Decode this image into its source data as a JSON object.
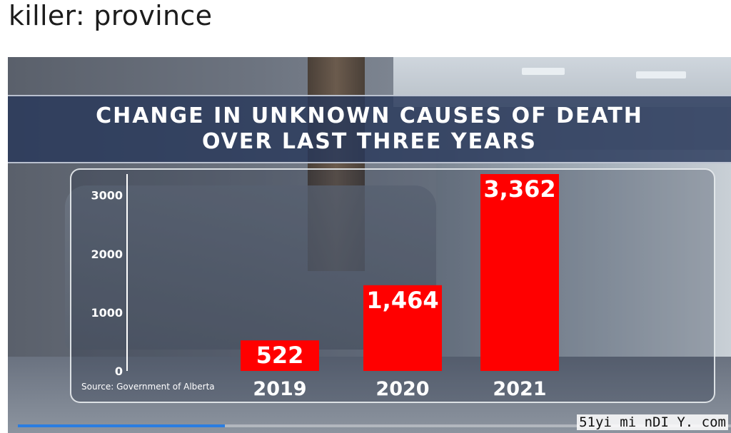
{
  "page": {
    "headline": "killer: province"
  },
  "video": {
    "progress": 0.29
  },
  "watermark": "51yi mi nDI Y. com",
  "chart_data": {
    "type": "bar",
    "title_lines": [
      "CHANGE IN UNKNOWN CAUSES OF DEATH",
      "OVER LAST THREE YEARS"
    ],
    "categories": [
      "2019",
      "2020",
      "2021"
    ],
    "values": [
      522,
      1464,
      3362
    ],
    "data_labels": [
      "522",
      "1,464",
      "3,362"
    ],
    "y_ticks": [
      0,
      1000,
      2000,
      3000
    ],
    "y_tick_labels": [
      "0",
      "1000",
      "2000",
      "3000"
    ],
    "ylim": [
      0,
      3362
    ],
    "xlabel": "",
    "ylabel": "",
    "bar_color": "#ff0000",
    "source": "Source: Government of Alberta"
  }
}
